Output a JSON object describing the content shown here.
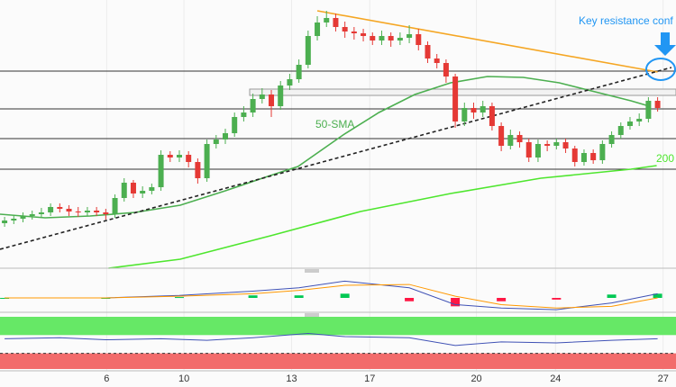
{
  "chart_data": {
    "type": "candlestick",
    "xlim": [
      -0.5,
      73
    ],
    "ylim": [
      0,
      300
    ],
    "xticks": [
      {
        "value": 11.1,
        "label": "6"
      },
      {
        "value": 19.5,
        "label": "10"
      },
      {
        "value": 31.2,
        "label": "13"
      },
      {
        "value": 39.7,
        "label": "17"
      },
      {
        "value": 51.3,
        "label": "20"
      },
      {
        "value": 59.9,
        "label": "24"
      },
      {
        "value": 71.6,
        "label": "27"
      }
    ],
    "grid": true,
    "up_color": "#4caf50",
    "down_color": "#e53935",
    "open": [
      52,
      55,
      57,
      60,
      62,
      64,
      70,
      68,
      65,
      64,
      66,
      64,
      62,
      80,
      97,
      85,
      88,
      92,
      128,
      125,
      128,
      120,
      102,
      140,
      145,
      152,
      170,
      175,
      190,
      195,
      182,
      205,
      212,
      228,
      260,
      275,
      280,
      270,
      265,
      263,
      260,
      255,
      260,
      255,
      258,
      262,
      250,
      235,
      230,
      215,
      165,
      180,
      175,
      182,
      160,
      138,
      150,
      142,
      125,
      140,
      138,
      142,
      135,
      120,
      130,
      122,
      140,
      150,
      160,
      165,
      168,
      188
    ],
    "high": [
      59,
      61,
      64,
      66,
      69,
      74,
      74,
      72,
      70,
      70,
      70,
      68,
      84,
      102,
      100,
      93,
      96,
      133,
      132,
      133,
      132,
      124,
      145,
      150,
      157,
      175,
      182,
      196,
      202,
      200,
      210,
      218,
      234,
      266,
      282,
      288,
      285,
      276,
      270,
      268,
      264,
      266,
      264,
      264,
      272,
      268,
      254,
      240,
      234,
      218,
      186,
      186,
      188,
      186,
      164,
      156,
      154,
      146,
      145,
      144,
      146,
      146,
      138,
      134,
      134,
      144,
      154,
      164,
      170,
      174,
      192,
      192
    ],
    "low": [
      48,
      51,
      53,
      56,
      58,
      60,
      64,
      60,
      59,
      60,
      60,
      56,
      58,
      76,
      80,
      80,
      84,
      88,
      120,
      120,
      114,
      96,
      98,
      135,
      140,
      148,
      165,
      170,
      185,
      170,
      178,
      200,
      208,
      224,
      255,
      270,
      265,
      258,
      256,
      254,
      250,
      250,
      248,
      250,
      252,
      244,
      230,
      224,
      208,
      158,
      160,
      168,
      170,
      155,
      132,
      134,
      136,
      120,
      120,
      132,
      134,
      130,
      115,
      116,
      118,
      118,
      136,
      146,
      156,
      160,
      164,
      176
    ],
    "close": [
      55,
      57,
      60,
      62,
      64,
      70,
      68,
      65,
      64,
      66,
      64,
      62,
      80,
      97,
      85,
      88,
      92,
      128,
      125,
      128,
      120,
      102,
      140,
      145,
      152,
      170,
      175,
      190,
      195,
      182,
      205,
      212,
      228,
      260,
      275,
      280,
      270,
      265,
      263,
      260,
      255,
      260,
      255,
      258,
      262,
      250,
      235,
      230,
      215,
      165,
      180,
      175,
      182,
      160,
      138,
      150,
      142,
      125,
      140,
      138,
      142,
      135,
      120,
      130,
      122,
      140,
      150,
      160,
      165,
      168,
      188,
      180
    ],
    "series": [
      {
        "color": "#4caf50",
        "x": [
          -0.5,
          4.4,
          9.3,
          14.2,
          19.1,
          24,
          28.9,
          31.9,
          36.8,
          40.7,
          44.6,
          48.5,
          52.5,
          56.4,
          60.3,
          64.2,
          68.1,
          70.1
        ],
        "values": [
          62,
          58,
          60,
          64,
          72,
          88,
          105,
          115,
          150,
          175,
          195,
          208,
          215,
          214,
          208,
          198,
          188,
          182
        ]
      },
      {
        "color": "#4ee62e",
        "x": [
          11.3,
          19.1,
          28.9,
          38.7,
          48.5,
          58.3,
          68.1,
          70.9
        ],
        "values": [
          2,
          12,
          38,
          65,
          85,
          102,
          112,
          116
        ]
      }
    ],
    "levels": [
      221,
      179,
      146,
      112
    ],
    "band": [
      194,
      201
    ],
    "trendlines": [
      {
        "color": "#f5a623",
        "dashed": false,
        "x": [
          34,
          71
        ],
        "y": [
          288,
          220
        ]
      },
      {
        "color": "#222222",
        "dashed": true,
        "x": [
          -0.5,
          72.5
        ],
        "y": [
          23,
          225
        ]
      }
    ],
    "annotations": [
      {
        "text": "Key resistance conf",
        "color": "#2196f3"
      },
      {
        "text": "50-SMA",
        "color": "#4caf50"
      },
      {
        "text": "200",
        "color": "#4ee62e"
      }
    ],
    "macd_panel": {
      "ylim": [
        -15,
        30
      ],
      "x": [
        0,
        11,
        19,
        27,
        32,
        37,
        44,
        49,
        54,
        60,
        66,
        71
      ],
      "macd": [
        0,
        0,
        3,
        8,
        12,
        20,
        12,
        -8,
        -12,
        -14,
        -6,
        5
      ],
      "signal": [
        0,
        0,
        2,
        5,
        9,
        15,
        16,
        2,
        -8,
        -12,
        -10,
        0
      ],
      "histogram": [
        0,
        0,
        1,
        3,
        3,
        5,
        -4,
        -10,
        -4,
        -2,
        4,
        5
      ],
      "macd_color": "#3f51b5",
      "signal_color": "#ff9800",
      "pos_color": "#00c853",
      "neg_color": "#ff1744"
    },
    "rsi_panel": {
      "ylim": [
        0,
        100
      ],
      "x": [
        0,
        6,
        11,
        17,
        22,
        27,
        33,
        37,
        44,
        49,
        54,
        60,
        66,
        71
      ],
      "values": [
        58,
        60,
        56,
        58,
        55,
        60,
        68,
        62,
        60,
        45,
        52,
        50,
        55,
        58
      ],
      "color": "#3f51b5",
      "upper_band": [
        65,
        100
      ],
      "lower_band": [
        0,
        30
      ],
      "upper_color": "#66e866",
      "lower_color": "#f26b6b",
      "levels": [
        30
      ]
    }
  }
}
